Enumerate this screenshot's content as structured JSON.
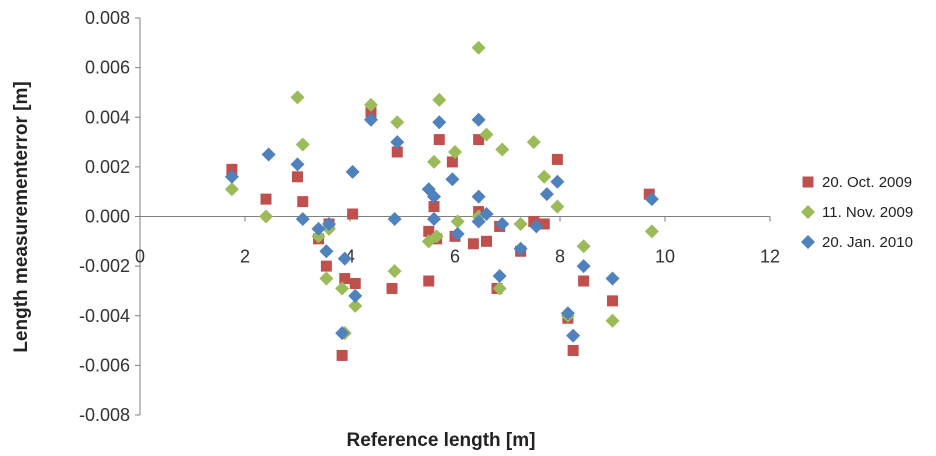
{
  "chart_data": {
    "type": "scatter",
    "xlabel": "Reference length [m]",
    "ylabel": "Length measurementerror [m]",
    "xlim": [
      0,
      12
    ],
    "ylim": [
      -0.008,
      0.008
    ],
    "xticks": [
      0,
      2,
      4,
      6,
      8,
      10,
      12
    ],
    "yticks": [
      0.008,
      0.006,
      0.004,
      0.002,
      0.0,
      -0.002,
      -0.004,
      -0.006,
      -0.008
    ],
    "ytick_labels": [
      "0.008",
      "0.006",
      "0.004",
      "0.002",
      "0.000",
      "-0.002",
      "-0.004",
      "-0.006",
      "-0.008"
    ],
    "xtick_labels": [
      "0",
      "2",
      "4",
      "6",
      "8",
      "10",
      "12"
    ],
    "grid": false,
    "legend_position": "right",
    "series": [
      {
        "name": "20. Oct. 2009",
        "marker": "square",
        "color": "#c0504d",
        "points": [
          [
            1.75,
            0.0019
          ],
          [
            2.4,
            0.0007
          ],
          [
            3.0,
            0.0016
          ],
          [
            3.1,
            0.0006
          ],
          [
            3.4,
            -0.0009
          ],
          [
            3.55,
            -0.002
          ],
          [
            3.6,
            -0.0003
          ],
          [
            3.85,
            -0.0056
          ],
          [
            3.9,
            -0.0025
          ],
          [
            4.05,
            0.0001
          ],
          [
            4.1,
            -0.0027
          ],
          [
            4.4,
            0.0042
          ],
          [
            4.8,
            -0.0029
          ],
          [
            4.9,
            0.0026
          ],
          [
            5.5,
            -0.0026
          ],
          [
            5.5,
            -0.0006
          ],
          [
            5.6,
            0.0004
          ],
          [
            5.65,
            -0.0009
          ],
          [
            5.7,
            0.0031
          ],
          [
            5.95,
            0.0022
          ],
          [
            6.0,
            -0.0008
          ],
          [
            6.35,
            -0.0011
          ],
          [
            6.45,
            0.0031
          ],
          [
            6.45,
            0.0002
          ],
          [
            6.6,
            -0.001
          ],
          [
            6.8,
            -0.0029
          ],
          [
            6.85,
            -0.0004
          ],
          [
            7.25,
            -0.0014
          ],
          [
            7.5,
            -0.0002
          ],
          [
            7.7,
            -0.0003
          ],
          [
            7.95,
            0.0023
          ],
          [
            8.15,
            -0.0041
          ],
          [
            8.25,
            -0.0054
          ],
          [
            8.45,
            -0.0026
          ],
          [
            9.0,
            -0.0034
          ],
          [
            9.7,
            0.0009
          ]
        ]
      },
      {
        "name": "11. Nov. 2009",
        "marker": "diamond",
        "color": "#9bbb59",
        "points": [
          [
            1.75,
            0.0011
          ],
          [
            2.4,
            0.0
          ],
          [
            3.0,
            0.0048
          ],
          [
            3.1,
            0.0029
          ],
          [
            3.4,
            -0.0008
          ],
          [
            3.55,
            -0.0025
          ],
          [
            3.6,
            -0.0005
          ],
          [
            3.85,
            -0.0029
          ],
          [
            3.9,
            -0.0047
          ],
          [
            4.1,
            -0.0036
          ],
          [
            4.4,
            0.0045
          ],
          [
            4.85,
            -0.0022
          ],
          [
            4.9,
            0.0038
          ],
          [
            5.5,
            -0.001
          ],
          [
            5.6,
            0.0022
          ],
          [
            5.65,
            -0.0008
          ],
          [
            5.7,
            0.0047
          ],
          [
            6.0,
            0.0026
          ],
          [
            6.05,
            -0.0002
          ],
          [
            6.45,
            0.0068
          ],
          [
            6.45,
            0.0
          ],
          [
            6.6,
            0.0033
          ],
          [
            6.85,
            -0.0029
          ],
          [
            6.9,
            0.0027
          ],
          [
            7.25,
            -0.0003
          ],
          [
            7.5,
            0.003
          ],
          [
            7.7,
            0.0016
          ],
          [
            7.95,
            0.0004
          ],
          [
            8.15,
            -0.004
          ],
          [
            8.45,
            -0.0012
          ],
          [
            9.0,
            -0.0042
          ],
          [
            9.75,
            -0.0006
          ]
        ]
      },
      {
        "name": "20. Jan. 2010",
        "marker": "diamond",
        "color": "#4f81bd",
        "points": [
          [
            1.75,
            0.0016
          ],
          [
            2.45,
            0.0025
          ],
          [
            3.0,
            0.0021
          ],
          [
            3.1,
            -0.0001
          ],
          [
            3.4,
            -0.0005
          ],
          [
            3.55,
            -0.0014
          ],
          [
            3.6,
            -0.0003
          ],
          [
            3.85,
            -0.0047
          ],
          [
            3.9,
            -0.0017
          ],
          [
            4.05,
            0.0018
          ],
          [
            4.1,
            -0.0032
          ],
          [
            4.4,
            0.0039
          ],
          [
            4.85,
            -0.0001
          ],
          [
            4.9,
            0.003
          ],
          [
            5.5,
            0.0011
          ],
          [
            5.6,
            0.0008
          ],
          [
            5.6,
            -0.0001
          ],
          [
            5.7,
            0.0038
          ],
          [
            5.95,
            0.0015
          ],
          [
            6.05,
            -0.0007
          ],
          [
            6.45,
            0.0039
          ],
          [
            6.45,
            0.0008
          ],
          [
            6.45,
            -0.0002
          ],
          [
            6.6,
            0.0001
          ],
          [
            6.85,
            -0.0024
          ],
          [
            6.9,
            -0.0003
          ],
          [
            7.25,
            -0.0013
          ],
          [
            7.55,
            -0.0004
          ],
          [
            7.75,
            0.0009
          ],
          [
            7.95,
            0.0014
          ],
          [
            8.15,
            -0.0039
          ],
          [
            8.25,
            -0.0048
          ],
          [
            8.45,
            -0.002
          ],
          [
            9.0,
            -0.0025
          ],
          [
            9.75,
            0.0007
          ]
        ]
      }
    ]
  }
}
